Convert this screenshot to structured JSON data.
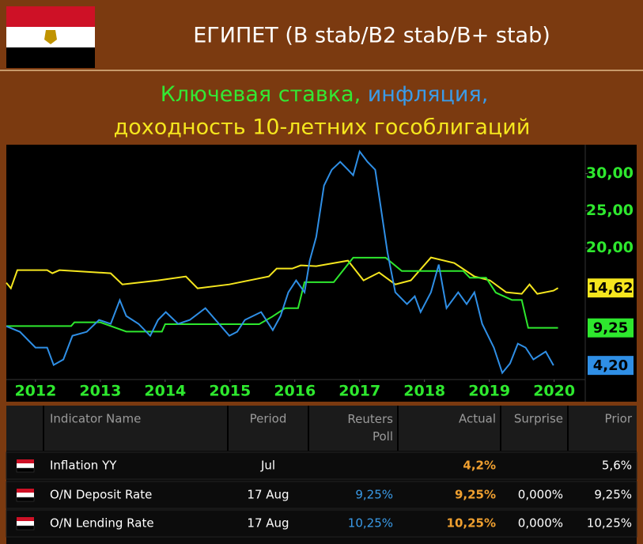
{
  "header": {
    "title": "ЕГИПЕТ (B stab/B2 stab/B+ stab)",
    "subtitle": [
      "Ключевая ставка,",
      " инфляция,",
      "доходность 10-летних гособлигаций"
    ]
  },
  "chart_data": {
    "type": "line",
    "xlim": [
      2012.05,
      2020.98
    ],
    "ylim": [
      2.3,
      33.9
    ],
    "xticks": [
      {
        "value": 2012.5,
        "label": "2012"
      },
      {
        "value": 2013.5,
        "label": "2013"
      },
      {
        "value": 2014.5,
        "label": "2014"
      },
      {
        "value": 2015.5,
        "label": "2015"
      },
      {
        "value": 2016.5,
        "label": "2016"
      },
      {
        "value": 2017.5,
        "label": "2017"
      },
      {
        "value": 2018.5,
        "label": "2018"
      },
      {
        "value": 2019.5,
        "label": "2019"
      },
      {
        "value": 2020.5,
        "label": "2020"
      }
    ],
    "yticks": [
      {
        "value": 20,
        "label": "20,00"
      },
      {
        "value": 25,
        "label": "25,00"
      },
      {
        "value": 30,
        "label": "30,00"
      }
    ],
    "series": [
      {
        "color": "#f5e61e",
        "label": "14,62",
        "x": [
          2012.05,
          2012.12,
          2012.22,
          2012.68,
          2012.76,
          2012.87,
          2013.66,
          2013.84,
          2014.39,
          2014.82,
          2015.0,
          2015.49,
          2016.1,
          2016.22,
          2016.46,
          2016.59,
          2016.83,
          2017.32,
          2017.56,
          2017.8,
          2018.05,
          2018.29,
          2018.6,
          2018.96,
          2019.27,
          2019.51,
          2019.76,
          2020.0,
          2020.12,
          2020.24,
          2020.49,
          2020.56
        ],
        "values": [
          15.32,
          14.57,
          17.02,
          17.02,
          16.6,
          17.02,
          16.6,
          15.1,
          15.64,
          16.17,
          14.57,
          15.1,
          16.17,
          17.23,
          17.23,
          17.66,
          17.55,
          18.3,
          15.64,
          16.7,
          15.1,
          15.64,
          18.72,
          17.98,
          16.17,
          15.64,
          14.04,
          13.83,
          15.1,
          13.83,
          14.26,
          14.62
        ]
      },
      {
        "color": "#2ee82e",
        "label": "9,25",
        "x": [
          2012.05,
          2013.05,
          2013.1,
          2013.5,
          2013.9,
          2014.45,
          2014.5,
          2015.95,
          2016.15,
          2016.35,
          2016.55,
          2016.65,
          2017.1,
          2017.4,
          2017.9,
          2018.15,
          2019.1,
          2019.2,
          2019.45,
          2019.6,
          2019.85,
          2020.0,
          2020.1,
          2020.56
        ],
        "values": [
          9.5,
          9.5,
          10.0,
          10.0,
          8.75,
          8.75,
          9.75,
          9.75,
          10.75,
          11.9,
          11.9,
          15.4,
          15.4,
          18.7,
          18.7,
          16.9,
          16.9,
          16.0,
          16.0,
          14.0,
          13.0,
          13.0,
          9.25,
          9.25
        ]
      },
      {
        "color": "#2f8fe6",
        "label": "4,20",
        "x": [
          2012.05,
          2012.26,
          2012.5,
          2012.68,
          2012.78,
          2012.93,
          2013.07,
          2013.29,
          2013.48,
          2013.66,
          2013.8,
          2013.9,
          2014.09,
          2014.27,
          2014.39,
          2014.51,
          2014.7,
          2014.88,
          2015.12,
          2015.49,
          2015.61,
          2015.73,
          2015.98,
          2016.16,
          2016.28,
          2016.4,
          2016.52,
          2016.65,
          2016.73,
          2016.83,
          2016.95,
          2017.07,
          2017.2,
          2017.32,
          2017.4,
          2017.5,
          2017.62,
          2017.74,
          2017.93,
          2018.05,
          2018.23,
          2018.35,
          2018.44,
          2018.6,
          2018.72,
          2018.84,
          2019.02,
          2019.15,
          2019.27,
          2019.39,
          2019.57,
          2019.7,
          2019.82,
          2019.94,
          2020.06,
          2020.18,
          2020.37,
          2020.49
        ],
        "values": [
          9.47,
          8.72,
          6.6,
          6.6,
          4.26,
          5.0,
          8.19,
          8.72,
          10.32,
          9.79,
          12.98,
          10.85,
          9.79,
          8.19,
          10.32,
          11.38,
          9.79,
          10.32,
          11.91,
          8.19,
          8.72,
          10.32,
          11.38,
          8.94,
          10.85,
          14.04,
          15.64,
          14.04,
          18.3,
          21.49,
          28.4,
          30.53,
          31.6,
          30.53,
          29.79,
          32.98,
          31.6,
          30.53,
          19.36,
          14.04,
          12.45,
          13.51,
          11.38,
          14.04,
          17.77,
          11.91,
          14.04,
          12.45,
          14.04,
          9.79,
          6.6,
          3.19,
          4.47,
          7.13,
          6.6,
          5.0,
          6.06,
          4.2
        ]
      }
    ]
  },
  "table": {
    "header": [
      null,
      "Indicator Name",
      "Period",
      "Reuters Poll",
      "Actual",
      "Surprise",
      "Prior"
    ],
    "rows": [
      [
        null,
        "Inflation YY",
        "Jul",
        null,
        "4,2%",
        null,
        "5,6%"
      ],
      [
        null,
        "O/N Deposit Rate",
        "17 Aug",
        "9,25%",
        "9,25%",
        "0,000%",
        "9,25%"
      ],
      [
        null,
        "O/N Lending Rate",
        "17 Aug",
        "10,25%",
        "10,25%",
        "0,000%",
        "10,25%"
      ]
    ]
  }
}
